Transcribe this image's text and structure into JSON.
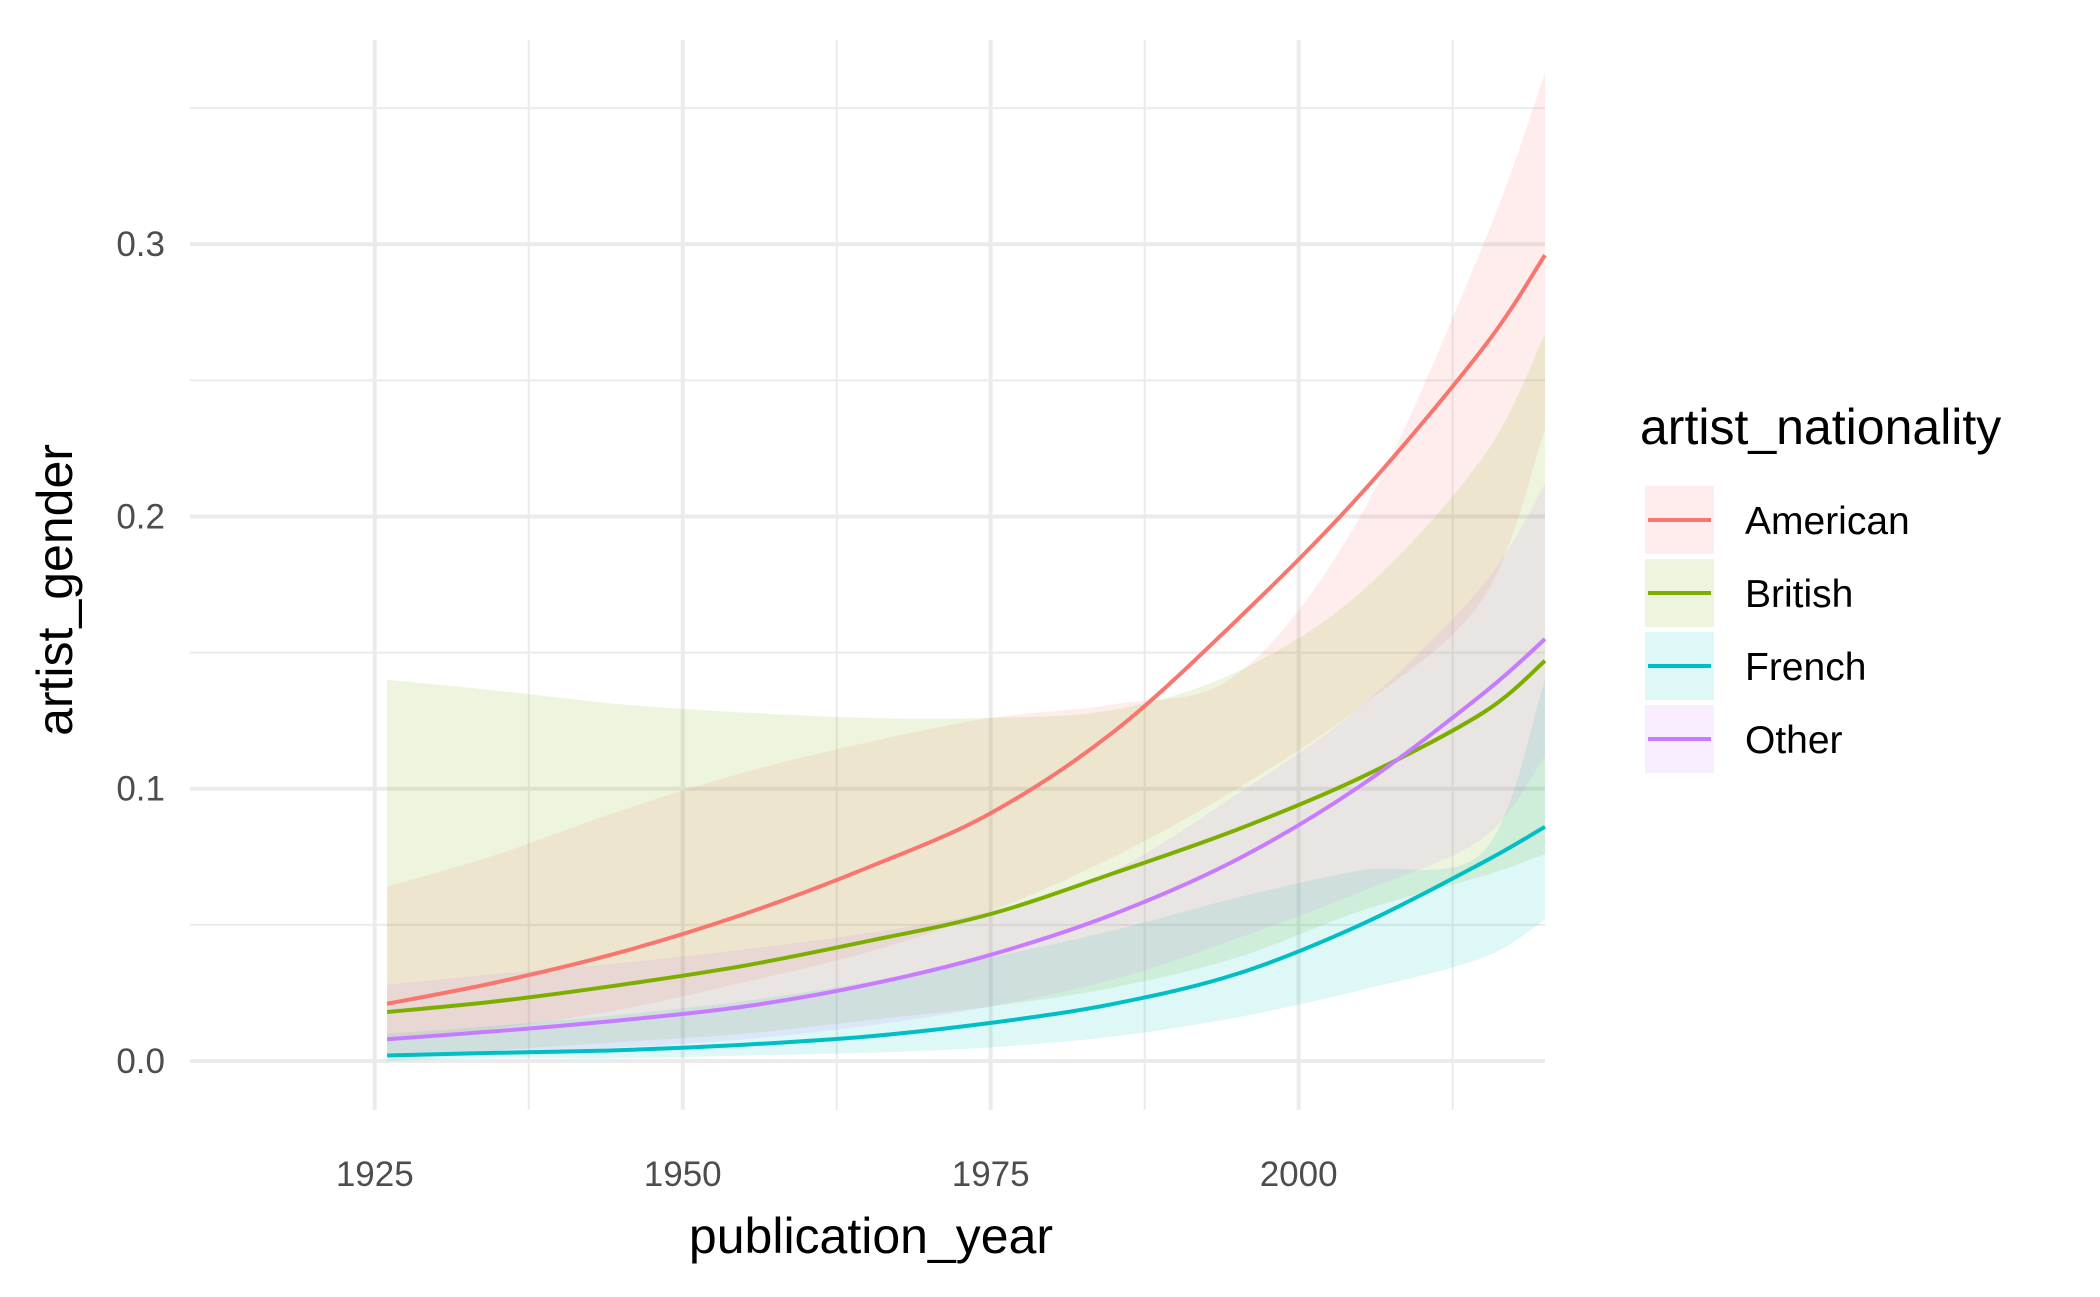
{
  "chart_data": {
    "type": "line",
    "title": "",
    "xlabel": "publication_year",
    "ylabel": "artist_gender",
    "xlim": [
      1910,
      2020
    ],
    "ylim": [
      -0.018,
      0.375
    ],
    "x_ticks": [
      1925,
      1950,
      1975,
      2000
    ],
    "x_tick_labels": [
      "1925",
      "1950",
      "1975",
      "2000"
    ],
    "x_minor_ticks": [
      1937.5,
      1962.5,
      1987.5,
      2012.5
    ],
    "y_ticks": [
      0.0,
      0.1,
      0.2,
      0.3
    ],
    "y_tick_labels": [
      "0.0",
      "0.1",
      "0.2",
      "0.3"
    ],
    "y_minor_ticks": [
      0.05,
      0.15,
      0.25,
      0.35
    ],
    "grid": true,
    "legend": {
      "title": "artist_nationality",
      "position": "right"
    },
    "series": [
      {
        "name": "American",
        "color": "#F8766D",
        "x": [
          1926,
          1935,
          1945,
          1955,
          1965,
          1975,
          1985,
          1995,
          2005,
          2015,
          2020
        ],
        "y": [
          0.021,
          0.029,
          0.04,
          0.054,
          0.071,
          0.091,
          0.121,
          0.162,
          0.208,
          0.262,
          0.296
        ],
        "lower": [
          0.007,
          0.012,
          0.019,
          0.029,
          0.04,
          0.055,
          0.075,
          0.1,
          0.13,
          0.17,
          0.232
        ],
        "upper": [
          0.064,
          0.076,
          0.092,
          0.106,
          0.117,
          0.126,
          0.131,
          0.142,
          0.2,
          0.3,
          0.363
        ]
      },
      {
        "name": "British",
        "color": "#7CAE00",
        "x": [
          1926,
          1935,
          1945,
          1955,
          1965,
          1975,
          1985,
          1995,
          2005,
          2015,
          2020
        ],
        "y": [
          0.018,
          0.022,
          0.028,
          0.035,
          0.044,
          0.054,
          0.069,
          0.085,
          0.104,
          0.128,
          0.147
        ],
        "lower": [
          0.002,
          0.004,
          0.007,
          0.01,
          0.015,
          0.02,
          0.027,
          0.038,
          0.055,
          0.068,
          0.076
        ],
        "upper": [
          0.14,
          0.136,
          0.131,
          0.128,
          0.126,
          0.126,
          0.129,
          0.143,
          0.172,
          0.222,
          0.267
        ]
      },
      {
        "name": "French",
        "color": "#00BFC4",
        "x": [
          1926,
          1935,
          1945,
          1955,
          1965,
          1975,
          1985,
          1995,
          2005,
          2015,
          2020
        ],
        "y": [
          0.002,
          0.003,
          0.004,
          0.006,
          0.009,
          0.014,
          0.021,
          0.032,
          0.05,
          0.073,
          0.086
        ],
        "lower": [
          0.0,
          0.001,
          0.001,
          0.002,
          0.003,
          0.005,
          0.009,
          0.016,
          0.026,
          0.038,
          0.052
        ],
        "upper": [
          0.01,
          0.013,
          0.017,
          0.022,
          0.029,
          0.038,
          0.048,
          0.06,
          0.07,
          0.077,
          0.14
        ]
      },
      {
        "name": "Other",
        "color": "#C77CFF",
        "x": [
          1926,
          1935,
          1945,
          1955,
          1965,
          1975,
          1985,
          1995,
          2005,
          2015,
          2020
        ],
        "y": [
          0.008,
          0.011,
          0.015,
          0.02,
          0.028,
          0.039,
          0.054,
          0.074,
          0.101,
          0.135,
          0.155
        ],
        "lower": [
          0.002,
          0.003,
          0.005,
          0.008,
          0.013,
          0.02,
          0.03,
          0.045,
          0.062,
          0.082,
          0.112
        ],
        "upper": [
          0.028,
          0.032,
          0.036,
          0.041,
          0.047,
          0.055,
          0.07,
          0.098,
          0.13,
          0.175,
          0.212
        ]
      }
    ]
  }
}
